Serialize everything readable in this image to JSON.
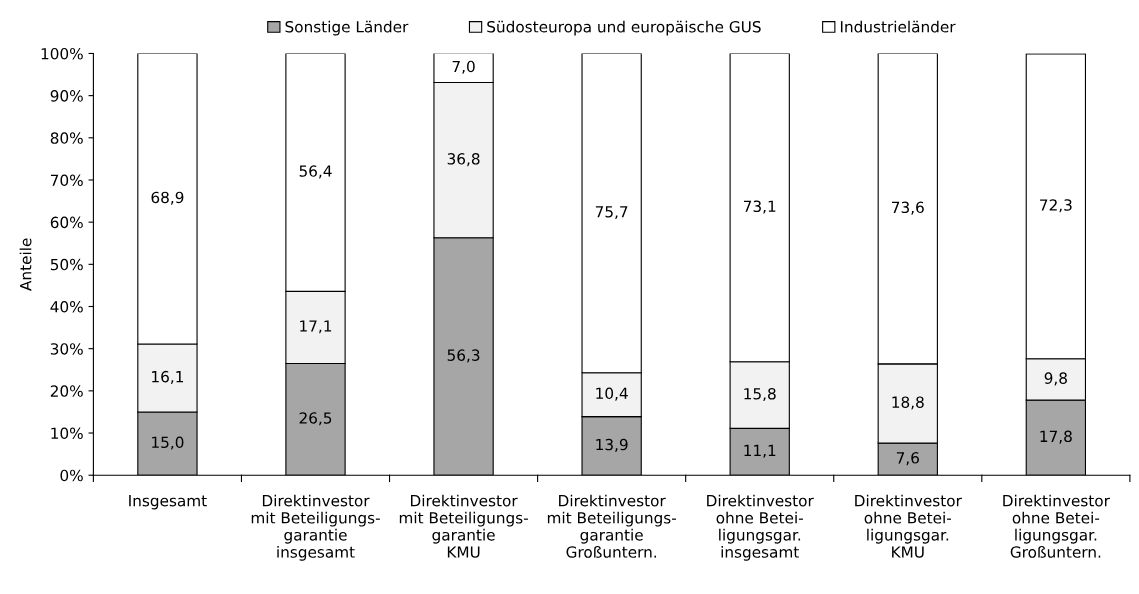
{
  "chart_data": {
    "type": "bar",
    "stacked": true,
    "ylabel": "Anteile",
    "categories": [
      "Insgesamt",
      "Direktinvestor\nmit Beteiligungs-\ngarantie\ninsgesamt",
      "Direktinvestor\nmit Beteiligungs-\ngarantie\nKMU",
      "Direktinvestor\nmit Beteiligungs-\ngarantie\nGroßuntern.",
      "Direktinvestor\nohne Betei-\nligungsgar.\ninsgesamt",
      "Direktinvestor\nohne Betei-\nligungsgar.\nKMU",
      "Direktinvestor\nohne Betei-\nligungsgar.\nGroßuntern."
    ],
    "series": [
      {
        "name": "Sonstige Länder",
        "color": "#a6a6a6",
        "values": [
          15.0,
          26.5,
          56.3,
          13.9,
          11.1,
          7.6,
          17.8
        ],
        "value_labels": [
          "15,0",
          "26,5",
          "56,3",
          "13,9",
          "11,1",
          "7,6",
          "17,8"
        ]
      },
      {
        "name": "Südosteuropa und europäische GUS",
        "color": "#f2f2f2",
        "values": [
          16.1,
          17.1,
          36.8,
          10.4,
          15.8,
          18.8,
          9.8
        ],
        "value_labels": [
          "16,1",
          "17,1",
          "36,8",
          "10,4",
          "15,8",
          "18,8",
          "9,8"
        ]
      },
      {
        "name": "Industrieländer",
        "color": "#ffffff",
        "values": [
          68.9,
          56.4,
          7.0,
          75.7,
          73.1,
          73.6,
          72.3
        ],
        "value_labels": [
          "68,9",
          "56,4",
          "7,0",
          "75,7",
          "73,1",
          "73,6",
          "72,3"
        ]
      }
    ],
    "ylim": [
      0,
      100
    ],
    "yticks": [
      {
        "value": 0,
        "label": "0%"
      },
      {
        "value": 10,
        "label": "10%"
      },
      {
        "value": 20,
        "label": "20%"
      },
      {
        "value": 30,
        "label": "30%"
      },
      {
        "value": 40,
        "label": "40%"
      },
      {
        "value": 50,
        "label": "50%"
      },
      {
        "value": 60,
        "label": "60%"
      },
      {
        "value": 70,
        "label": "70%"
      },
      {
        "value": 80,
        "label": "80%"
      },
      {
        "value": 90,
        "label": "90%"
      },
      {
        "value": 100,
        "label": "100%"
      }
    ],
    "grid": false,
    "legend": "top"
  }
}
